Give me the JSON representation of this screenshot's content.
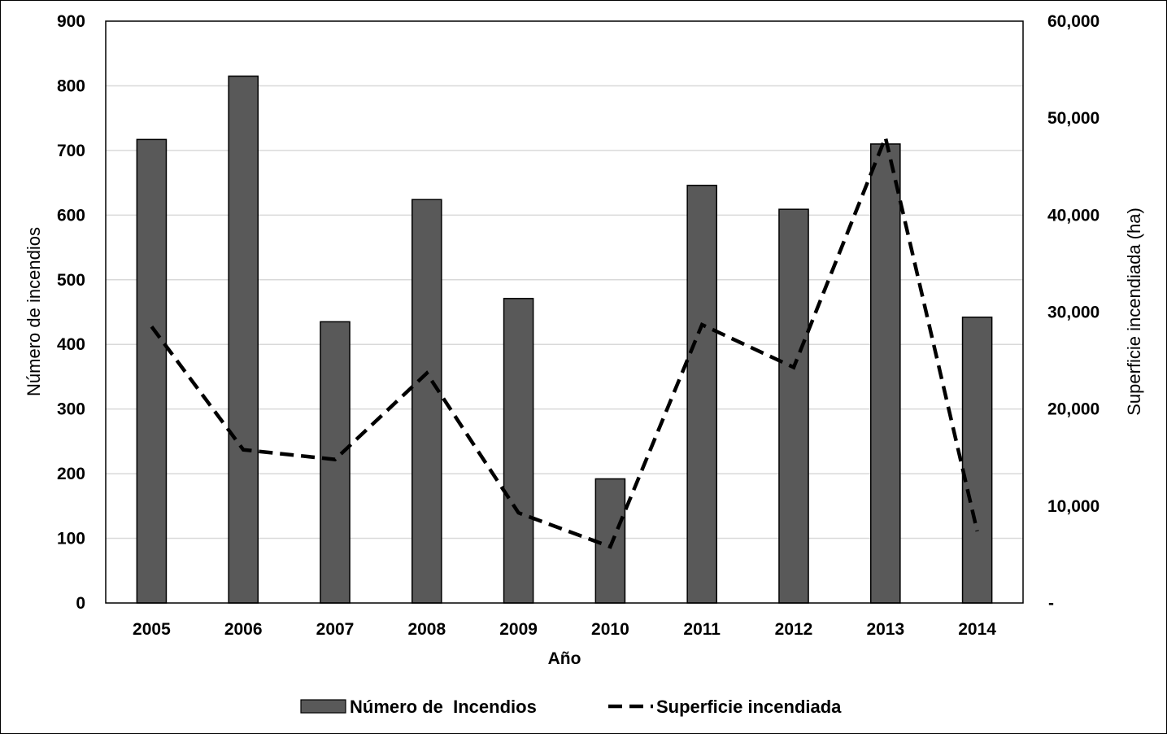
{
  "chart_data": {
    "type": "bar",
    "categories": [
      "2005",
      "2006",
      "2007",
      "2008",
      "2009",
      "2010",
      "2011",
      "2012",
      "2013",
      "2014"
    ],
    "series": [
      {
        "name": "Número de  Incendios",
        "type": "bar",
        "axis": "left",
        "color": "#595959",
        "values": [
          717,
          815,
          435,
          624,
          471,
          192,
          646,
          609,
          710,
          442
        ]
      },
      {
        "name": "Superficie incendiada",
        "type": "line",
        "axis": "right",
        "style": "dashed",
        "color": "#000000",
        "values": [
          28500,
          15800,
          14800,
          23700,
          9300,
          5800,
          28700,
          24300,
          48000,
          7400
        ]
      }
    ],
    "xlabel": "Año",
    "ylabel": "Número  de incendios",
    "y2label": "Superficie incendiada (ha)",
    "ylim": [
      0,
      900
    ],
    "y2lim": [
      0,
      60000
    ],
    "yticks": [
      "0",
      "100",
      "200",
      "300",
      "400",
      "500",
      "600",
      "700",
      "800",
      "900"
    ],
    "y2ticks": [
      "-",
      "10,000",
      "20,000",
      "30,000",
      "40,000",
      "50,000",
      "60,000"
    ],
    "grid": true,
    "legend": "bottom"
  }
}
